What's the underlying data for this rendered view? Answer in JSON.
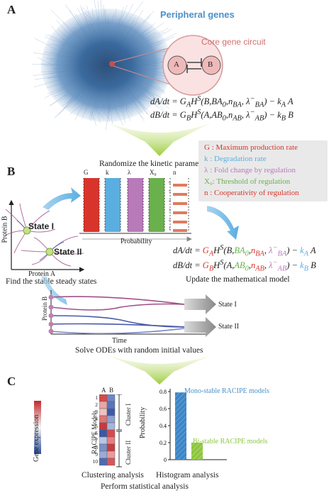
{
  "panel_a": {
    "letter": "A",
    "peripheral_label": "Peripheral genes",
    "core_label": "Core gene circuit",
    "node_a": "A",
    "node_b": "B",
    "eq1": "dA/dt = G_A H^S(B,BA_0,n_BA,λ_BA^-) − k_A A",
    "eq2": "dB/dt = G_B H^S(A,AB_0,n_AB,λ_AB^-) − k_B B"
  },
  "panel_b": {
    "letter": "B",
    "randomize_title": "Randomize the kinetic parameters",
    "hist_labels": [
      "G",
      "k",
      "λ",
      "X₀",
      "n"
    ],
    "probability_label": "Probability",
    "legend": [
      {
        "text": "G : Maximum production rate",
        "color": "#d9342b"
      },
      {
        "text": "k : Degradation rate",
        "color": "#5aaee0"
      },
      {
        "text": "λ : Fold change by regulation",
        "color": "#b87ab8"
      },
      {
        "text": "X₀: Threshold of regulation",
        "color": "#6ab04c"
      },
      {
        "text": "n : Cooperativity of regulation",
        "color": "#d9342b"
      }
    ],
    "n_ticks": [
      "6",
      "5",
      "4",
      "3",
      "2",
      "1"
    ],
    "state1": "State I",
    "state2": "State II",
    "protein_a": "Protein A",
    "protein_b": "Protein B",
    "find_stable": "Find the stable steady states",
    "update_model": "Update the mathematical model",
    "traj_protein_b": "Protein B",
    "time": "Time",
    "traj_state1": "State I",
    "traj_state2": "State II",
    "solve_odes": "Solve ODEs with random initial values"
  },
  "panel_c": {
    "letter": "C",
    "gene_expression": "Gene expression",
    "racipe_models": "RACIPE Models",
    "col_a": "A",
    "col_b": "B",
    "rows": [
      "1",
      "2",
      "3",
      "4",
      "5",
      "6",
      "7",
      "8",
      "9",
      "10"
    ],
    "cluster1": "Cluster I",
    "cluster2": "Cluster II",
    "clustering_label": "Clustering analysis",
    "histogram_label": "Histogram analysis",
    "probability_axis": "Probability",
    "yticks": [
      "0.8",
      "0.6",
      "0.4",
      "0.2",
      "0"
    ],
    "mono_label": "Mono-stable RACIPE models",
    "bi_label": "Bi-stable RACIPE models",
    "footer": "Perform statistical analysis"
  },
  "chart_data": {
    "type": "bar",
    "categories": [
      "Mono-stable RACIPE models",
      "Bi-stable RACIPE models"
    ],
    "values": [
      0.79,
      0.2
    ],
    "ylim": [
      0,
      0.8
    ],
    "ylabel": "Probability",
    "colors": [
      "#3d86c6",
      "#8dc63f"
    ]
  }
}
